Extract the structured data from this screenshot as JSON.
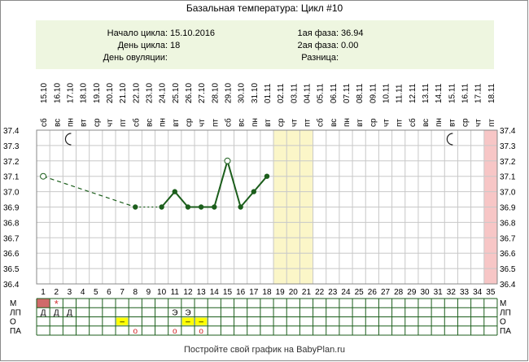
{
  "title": "Базальная температура: Цикл #10",
  "info": {
    "cycle_start_label": "Начало цикла:",
    "cycle_start_value": "15.10.2016",
    "cycle_day_label": "День цикла:",
    "cycle_day_value": "18",
    "ovulation_day_label": "День овуляции:",
    "ovulation_day_value": "",
    "phase1_label": "1ая фаза:",
    "phase1_value": "36.94",
    "phase2_label": "2ая фаза:",
    "phase2_value": "0.00",
    "difference_label": "Разница:",
    "difference_value": ""
  },
  "footer": "Постройте свой график на BabyPlan.ru",
  "chart_data": {
    "type": "line",
    "title": "Базальная температура: Цикл #10",
    "days": [
      1,
      2,
      3,
      4,
      5,
      6,
      7,
      8,
      9,
      10,
      11,
      12,
      13,
      14,
      15,
      16,
      17,
      18,
      19,
      20,
      21,
      22,
      23,
      24,
      25,
      26,
      27,
      28,
      29,
      30,
      31,
      32,
      33,
      34,
      35
    ],
    "weekdays": [
      "сб",
      "вс",
      "пн",
      "вт",
      "ср",
      "чт",
      "пт",
      "сб",
      "вс",
      "пн",
      "вт",
      "ср",
      "чт",
      "пт",
      "сб",
      "вс",
      "пн",
      "вт",
      "ср",
      "чт",
      "пт",
      "сб",
      "вс",
      "пн",
      "вт",
      "ср",
      "чт",
      "пт",
      "сб",
      "вс",
      "пн",
      "вт",
      "ср",
      "чт",
      "пт"
    ],
    "dates": [
      "15.10",
      "16.10",
      "17.10",
      "18.10",
      "19.10",
      "20.10",
      "21.10",
      "22.10",
      "23.10",
      "24.10",
      "25.10",
      "26.10",
      "27.10",
      "28.10",
      "29.10",
      "30.10",
      "31.10",
      "01.11",
      "02.11",
      "03.11",
      "04.11",
      "05.11",
      "06.11",
      "07.11",
      "08.11",
      "09.11",
      "10.11",
      "11.11",
      "12.11",
      "13.11",
      "14.11",
      "15.11",
      "16.11",
      "17.11",
      "18.11"
    ],
    "ylim": [
      36.4,
      37.4
    ],
    "yticks": [
      "37.4",
      "37.3",
      "37.2",
      "37.1",
      "37.0",
      "36.9",
      "36.8",
      "36.7",
      "36.6",
      "36.5",
      "36.4"
    ],
    "series": [
      {
        "points": [
          {
            "day": 1,
            "temp": 37.1,
            "marker": "hollow"
          },
          {
            "day": 8,
            "temp": 36.9,
            "marker": "filled"
          },
          {
            "day": 10,
            "temp": 36.9,
            "marker": "filled"
          },
          {
            "day": 11,
            "temp": 37.0,
            "marker": "filled"
          },
          {
            "day": 12,
            "temp": 36.9,
            "marker": "filled"
          },
          {
            "day": 13,
            "temp": 36.9,
            "marker": "filled"
          },
          {
            "day": 14,
            "temp": 36.9,
            "marker": "filled"
          },
          {
            "day": 15,
            "temp": 37.2,
            "marker": "hollow"
          },
          {
            "day": 16,
            "temp": 36.9,
            "marker": "filled"
          },
          {
            "day": 17,
            "temp": 37.0,
            "marker": "filled"
          },
          {
            "day": 18,
            "temp": 37.1,
            "marker": "filled"
          }
        ],
        "dashed_segment": [
          1,
          8
        ],
        "dotted_segment": [
          8,
          10
        ],
        "solid_from_day": 10
      }
    ],
    "highlight_days": {
      "yellow": [
        19,
        20,
        21
      ],
      "pink": [
        35
      ]
    },
    "moon_days": [
      3,
      32
    ],
    "moon_icon": "crescent-moon-icon",
    "line_color": "#1c5e1c",
    "yellow_band_color": "#fbf6c8",
    "pink_band_color": "#f7c6c6",
    "rows": {
      "labels": [
        "М",
        "ЛП",
        "О",
        "ПА"
      ],
      "m_filled_days": [
        1
      ],
      "m_filled_color": "#d06a6a",
      "m_star_day": 2,
      "m_star": "*",
      "lp": [
        {
          "day": 1,
          "text": "Д"
        },
        {
          "day": 2,
          "text": "Д"
        },
        {
          "day": 3,
          "text": "Д"
        },
        {
          "day": 11,
          "text": "Э"
        },
        {
          "day": 12,
          "text": "Э"
        }
      ],
      "o": [
        {
          "day": 7,
          "text": "–"
        },
        {
          "day": 12,
          "text": "–"
        },
        {
          "day": 13,
          "text": "–"
        }
      ],
      "o_color": "#ffff00",
      "pa": [
        {
          "day": 8,
          "text": "o"
        },
        {
          "day": 11,
          "text": "o"
        },
        {
          "day": 13,
          "text": "o"
        }
      ],
      "pa_color": "#d02020"
    }
  }
}
